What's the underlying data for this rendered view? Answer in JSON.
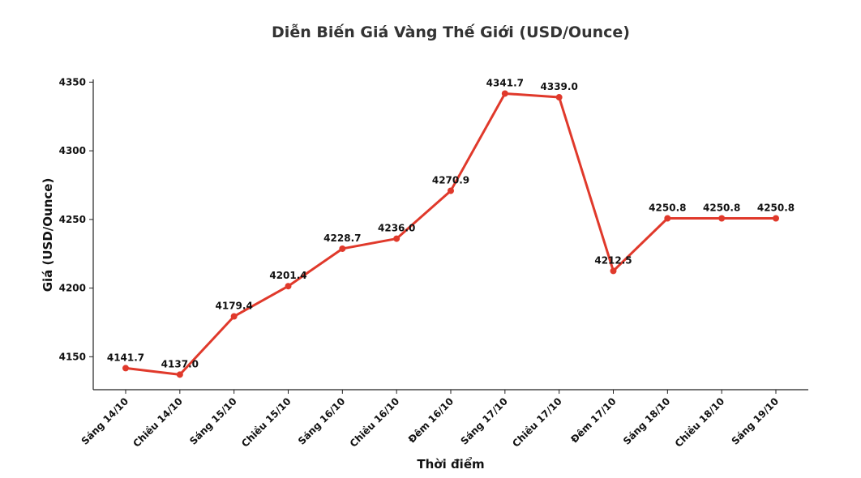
{
  "chart_data": {
    "type": "line",
    "title": "Diễn Biến Giá Vàng Thế Giới (USD/Ounce)",
    "xlabel": "Thời điểm",
    "ylabel": "Giá (USD/Ounce)",
    "categories": [
      "Sáng 14/10",
      "Chiều 14/10",
      "Sáng 15/10",
      "Chiều 15/10",
      "Sáng 16/10",
      "Chiều 16/10",
      "Đêm 16/10",
      "Sáng 17/10",
      "Chiều 17/10",
      "Đêm 17/10",
      "Sáng 18/10",
      "Chiều 18/10",
      "Sáng 19/10"
    ],
    "values": [
      4141.7,
      4137.0,
      4179.4,
      4201.4,
      4228.7,
      4236.0,
      4270.9,
      4341.7,
      4339.0,
      4212.5,
      4250.8,
      4250.8,
      4250.8
    ],
    "value_labels": [
      "4141.7",
      "4137.0",
      "4179.4",
      "4201.4",
      "4228.7",
      "4236.0",
      "4270.9",
      "4341.7",
      "4339.0",
      "4212.5",
      "4250.8",
      "4250.8",
      "4250.8"
    ],
    "color": "#e0392b",
    "ylim": [
      4126,
      4352
    ],
    "yticks": [
      4150,
      4200,
      4250,
      4300,
      4350
    ],
    "grid": false
  }
}
